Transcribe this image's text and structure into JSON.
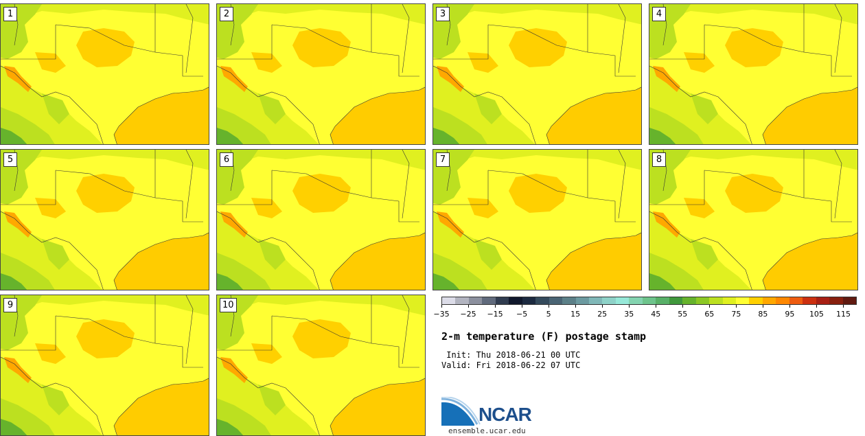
{
  "panels": [
    {
      "label": "1"
    },
    {
      "label": "2"
    },
    {
      "label": "3"
    },
    {
      "label": "4"
    },
    {
      "label": "5"
    },
    {
      "label": "6"
    },
    {
      "label": "7"
    },
    {
      "label": "8"
    },
    {
      "label": "9"
    },
    {
      "label": "10"
    }
  ],
  "colorbar": {
    "colors": [
      "#dcdce8",
      "#b2b4c0",
      "#8c909e",
      "#606a7c",
      "#303c50",
      "#10182c",
      "#1c2a40",
      "#344a5c",
      "#4a6474",
      "#5c8088",
      "#6c9aa0",
      "#80b8b8",
      "#8ed2c8",
      "#96e8d8",
      "#84d4b0",
      "#6ec48c",
      "#58b068",
      "#40983c",
      "#66b32c",
      "#8cc824",
      "#bce020",
      "#e0f020",
      "#ffff33",
      "#ffd000",
      "#ffa800",
      "#ff8800",
      "#ee5c10",
      "#cc3010",
      "#a82014",
      "#88200e",
      "#601a10"
    ],
    "tick_labels": [
      "−35",
      "−25",
      "−15",
      "−5",
      "5",
      "15",
      "25",
      "35",
      "45",
      "55",
      "65",
      "75",
      "85",
      "95",
      "105",
      "115"
    ]
  },
  "title": "2-m temperature (F) postage stamp",
  "init": " Init: Thu 2018-06-21 00 UTC",
  "valid": "Valid: Fri 2018-06-22 07 UTC",
  "logo": {
    "name": "NCAR",
    "url": "ensemble.ucar.edu"
  },
  "map_colors": {
    "land": "#ffff33",
    "warm": "#ffd000",
    "hot": "#ffa800",
    "gulf": "#ffcc00",
    "cool": "#e0f020",
    "green": "#bce020",
    "dark": "#66b32c"
  }
}
